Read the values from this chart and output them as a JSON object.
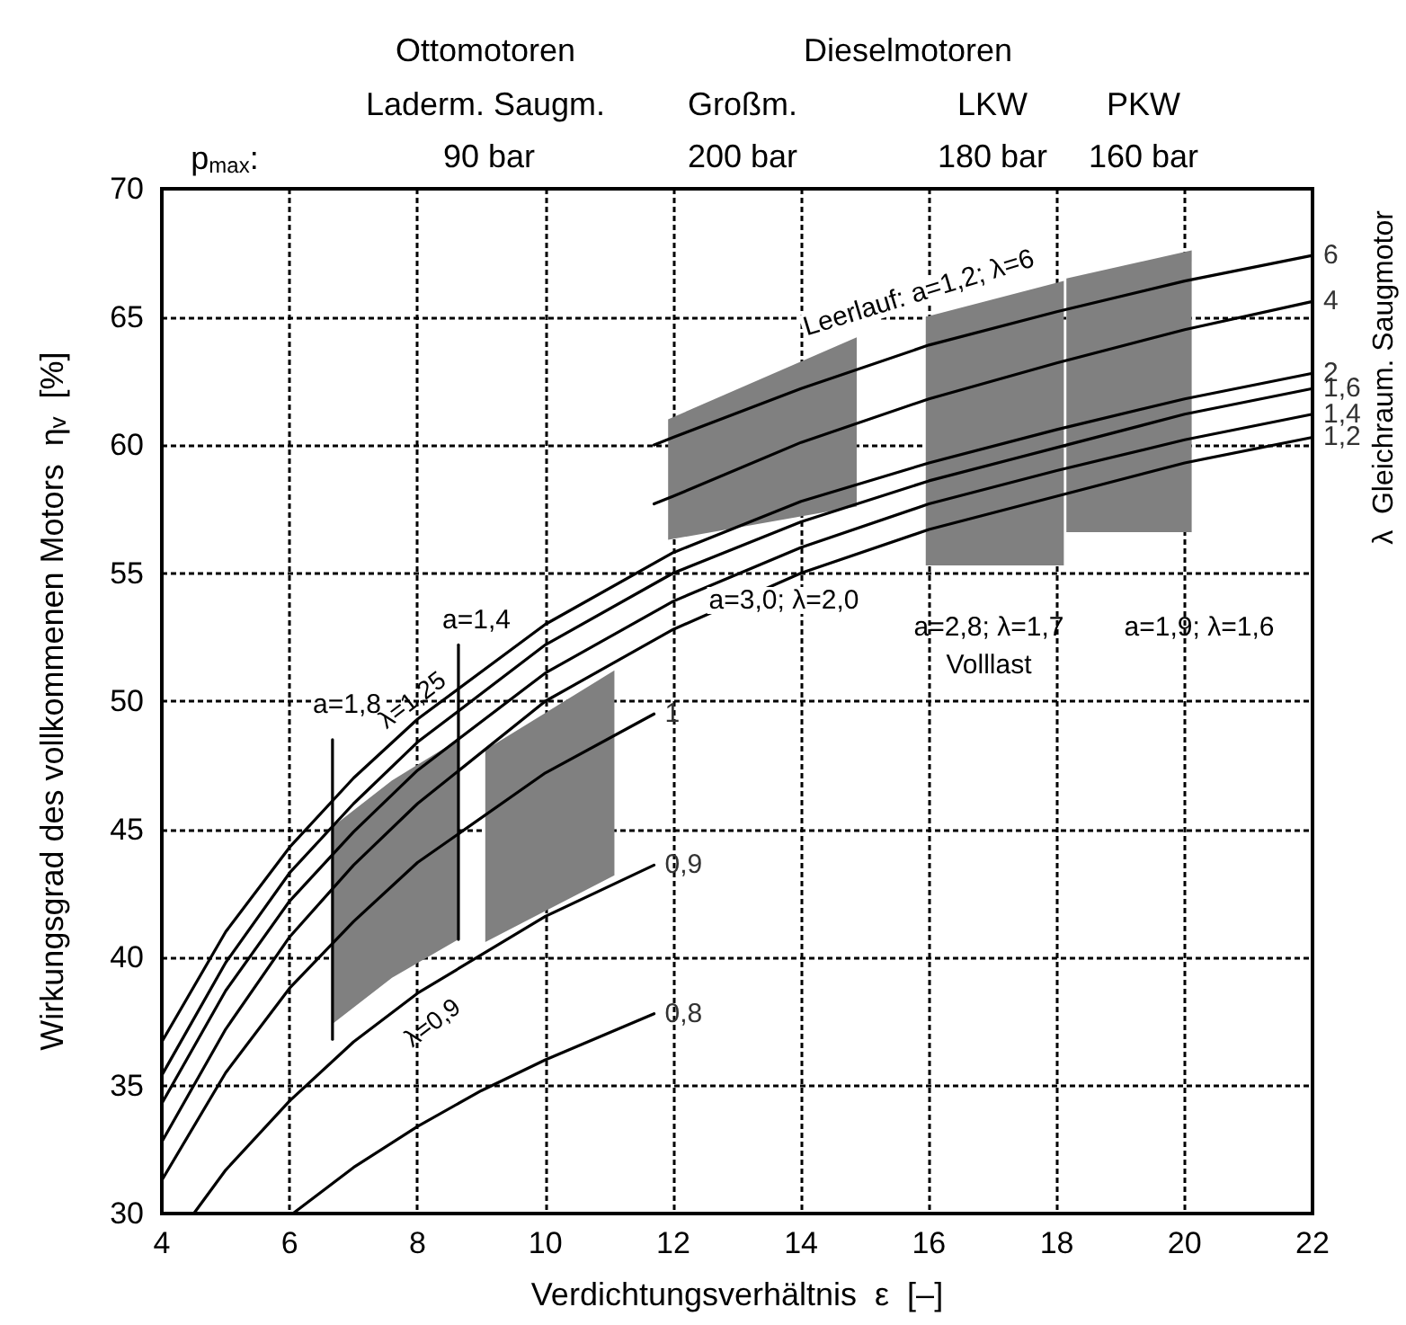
{
  "chart_data": {
    "type": "line",
    "xlabel": "Verdichtungsverhältnis  ε  [–]",
    "ylabel": "Wirkungsgrad des vollkommenen Motors  η$_{v}$  [%]",
    "y2label": "λ  Gleichraum. Saugmotor",
    "xlim": [
      4,
      22
    ],
    "xticks": [
      4,
      6,
      8,
      10,
      12,
      14,
      16,
      18,
      20,
      22
    ],
    "ylim": [
      30,
      70
    ],
    "yticks": [
      30,
      35,
      40,
      45,
      50,
      55,
      60,
      65,
      70
    ],
    "grid": true,
    "marker": "none",
    "line_style": "solid",
    "series": [
      {
        "color": "#808080",
        "x": [
          6.67,
          7.6,
          8.64
        ],
        "values": [
          null,
          null,
          null
        ],
        "upper": [
          45.1,
          46.9,
          48.5
        ],
        "lower": [
          37.4,
          39.2,
          40.7
        ]
      },
      {
        "color": "#808080",
        "x": [
          9.06,
          11.08
        ],
        "values": [
          null,
          null
        ],
        "upper": [
          48.1,
          51.2
        ],
        "lower": [
          40.6,
          43.2
        ]
      },
      {
        "color": "#808080",
        "x": [
          11.92,
          14.87
        ],
        "values": [
          null,
          null
        ],
        "upper": [
          61.0,
          64.2
        ],
        "lower": [
          56.3,
          57.6
        ]
      },
      {
        "color": "#808080",
        "x": [
          15.95,
          18.11
        ],
        "values": [
          null,
          null
        ],
        "upper": [
          65.0,
          66.4
        ],
        "lower": [
          55.3,
          55.3
        ]
      },
      {
        "color": "#808080",
        "x": [
          18.15,
          20.11
        ],
        "values": [
          null,
          null
        ],
        "upper": [
          66.5,
          67.6
        ],
        "lower": [
          56.6,
          56.6
        ]
      },
      {
        "name": "6",
        "color": "#000000",
        "x": [
          11.7,
          12,
          14,
          16,
          18,
          20,
          22
        ],
        "values": [
          60.0,
          60.3,
          62.2,
          63.9,
          65.2,
          66.4,
          67.4
        ]
      },
      {
        "name": "4",
        "color": "#000000",
        "x": [
          11.7,
          12,
          14,
          16,
          18,
          20,
          22
        ],
        "values": [
          57.7,
          58.0,
          60.1,
          61.8,
          63.2,
          64.5,
          65.6
        ]
      },
      {
        "name": "2",
        "color": "#000000",
        "x": [
          4,
          5,
          6,
          7,
          8,
          10,
          12,
          14,
          16,
          18,
          20,
          22
        ],
        "values": [
          36.7,
          41.0,
          44.3,
          47.0,
          49.3,
          53.0,
          55.8,
          57.8,
          59.3,
          60.6,
          61.8,
          62.8
        ]
      },
      {
        "name": "1,6",
        "color": "#000000",
        "x": [
          4,
          5,
          6,
          7,
          8,
          10,
          12,
          14,
          16,
          18,
          20,
          22
        ],
        "values": [
          35.4,
          39.8,
          43.3,
          46.0,
          48.4,
          52.2,
          55.0,
          57.0,
          58.6,
          59.9,
          61.2,
          62.2
        ]
      },
      {
        "name": "1,4",
        "color": "#000000",
        "x": [
          4,
          5,
          6,
          7,
          8,
          10,
          12,
          14,
          16,
          18,
          20,
          22
        ],
        "values": [
          34.3,
          38.7,
          42.2,
          44.9,
          47.3,
          51.1,
          53.9,
          56.0,
          57.7,
          59.0,
          60.2,
          61.2
        ]
      },
      {
        "name": "1,2",
        "color": "#000000",
        "x": [
          4,
          5,
          6,
          7,
          8,
          10,
          12,
          14,
          16,
          18,
          20,
          22
        ],
        "values": [
          32.8,
          37.2,
          40.8,
          43.6,
          46.0,
          50.0,
          52.8,
          55.0,
          56.7,
          58.0,
          59.3,
          60.3
        ]
      },
      {
        "name": "1",
        "color": "#000000",
        "x": [
          4,
          5,
          6,
          7,
          8,
          10,
          11.7
        ],
        "values": [
          31.3,
          35.5,
          38.8,
          41.4,
          43.7,
          47.2,
          49.5
        ]
      },
      {
        "name": "0,9",
        "color": "#000000",
        "x": [
          4.5,
          5,
          6,
          7,
          8,
          10,
          11.7
        ],
        "values": [
          30.0,
          31.7,
          34.4,
          36.7,
          38.6,
          41.6,
          43.6
        ]
      },
      {
        "name": "0,8",
        "color": "#000000",
        "x": [
          6.05,
          7,
          8,
          9,
          10,
          11.7
        ],
        "values": [
          30.0,
          31.8,
          33.4,
          34.8,
          36.0,
          37.8
        ]
      },
      {
        "color": "#000000",
        "x": [
          6.67,
          6.67
        ],
        "values": [
          36.8,
          48.5
        ]
      },
      {
        "color": "#000000",
        "x": [
          8.64,
          8.64
        ],
        "values": [
          40.7,
          52.2
        ]
      }
    ],
    "annotations": [
      "Ottomotoren",
      "Laderm. Saugm.",
      "Dieselmotoren",
      "Großm.",
      "LKW",
      "PKW",
      "p$_{max}$:",
      "90 bar",
      "200 bar",
      "180 bar",
      "160 bar",
      "Leerlauf: a=1,2; λ=6",
      "a=3,0; λ=2,0",
      "a=2,8; λ=1,7",
      "Volllast",
      "a=1,9; λ=1,6",
      "a=1,8",
      "a=1,4",
      "λ=1,25",
      {
        "text": "λ=0,9",
        "x": 8.0,
        "y": 38.6
      }
    ]
  }
}
